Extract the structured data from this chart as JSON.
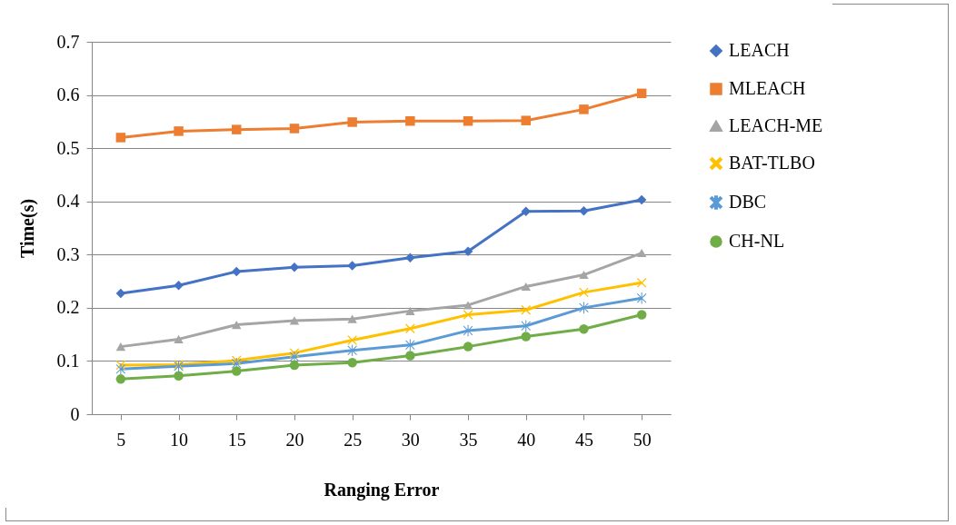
{
  "chart_data": {
    "type": "line",
    "xlabel": "Ranging Error",
    "ylabel": "Time(s)",
    "categories": [
      "5",
      "10",
      "15",
      "20",
      "25",
      "30",
      "35",
      "40",
      "45",
      "50"
    ],
    "ylim": [
      0,
      0.7
    ],
    "yticks": [
      0,
      0.1,
      0.2,
      0.3,
      0.4,
      0.5,
      0.6,
      0.7
    ],
    "grid": "y",
    "legend": "right",
    "series": [
      {
        "name": "LEACH",
        "color": "#4472c4",
        "marker": "diamond",
        "values": [
          0.227,
          0.242,
          0.268,
          0.276,
          0.279,
          0.294,
          0.306,
          0.381,
          0.382,
          0.403
        ]
      },
      {
        "name": "MLEACH",
        "color": "#ed7d31",
        "marker": "square",
        "values": [
          0.52,
          0.532,
          0.535,
          0.537,
          0.549,
          0.551,
          0.551,
          0.552,
          0.573,
          0.603
        ]
      },
      {
        "name": "LEACH-ME",
        "color": "#a5a5a5",
        "marker": "triangle",
        "values": [
          0.127,
          0.141,
          0.168,
          0.176,
          0.179,
          0.194,
          0.205,
          0.24,
          0.262,
          0.303
        ]
      },
      {
        "name": "BAT-TLBO",
        "color": "#ffc000",
        "marker": "cross",
        "values": [
          0.092,
          0.093,
          0.101,
          0.115,
          0.139,
          0.161,
          0.187,
          0.196,
          0.229,
          0.247
        ]
      },
      {
        "name": "DBC",
        "color": "#5b9bd5",
        "marker": "star",
        "values": [
          0.085,
          0.09,
          0.095,
          0.108,
          0.12,
          0.13,
          0.157,
          0.166,
          0.2,
          0.218
        ]
      },
      {
        "name": "CH-NL",
        "color": "#70ad47",
        "marker": "circle",
        "values": [
          0.066,
          0.072,
          0.081,
          0.092,
          0.097,
          0.11,
          0.127,
          0.146,
          0.16,
          0.187
        ]
      }
    ]
  }
}
